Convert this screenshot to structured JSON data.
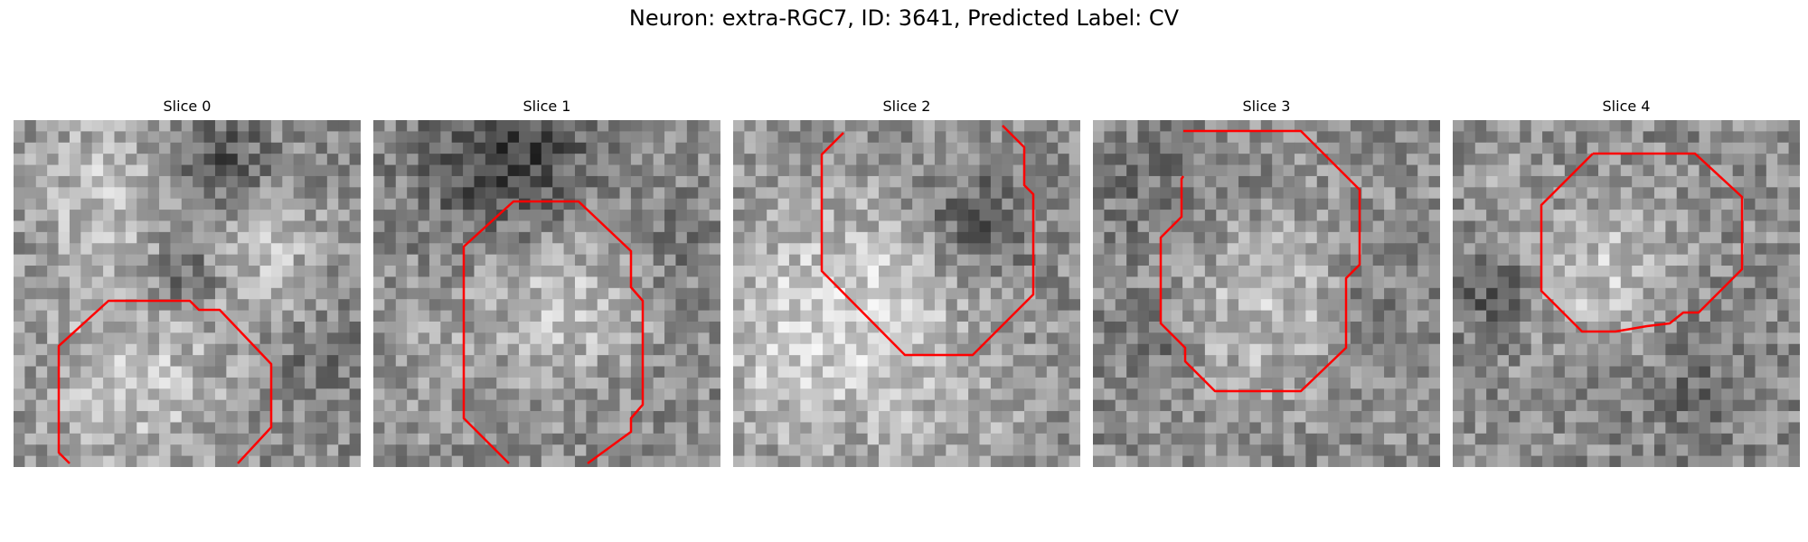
{
  "figure": {
    "title": "Neuron: extra-RGC7, ID: 3641, Predicted Label: CV",
    "contour_color": "#ff0000"
  },
  "panels": [
    {
      "title": "Slice 0"
    },
    {
      "title": "Slice 1"
    },
    {
      "title": "Slice 2"
    },
    {
      "title": "Slice 3"
    },
    {
      "title": "Slice 4"
    }
  ]
}
